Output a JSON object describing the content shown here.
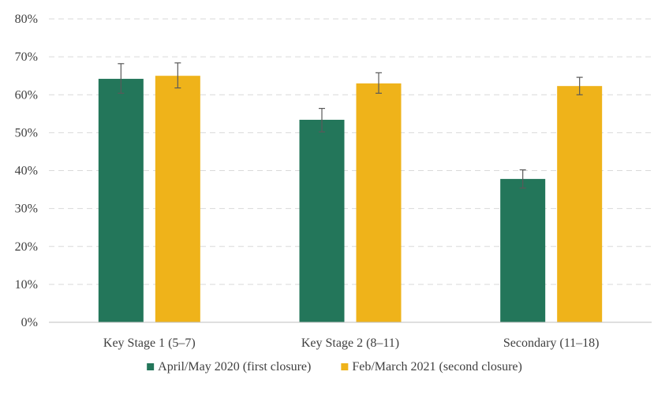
{
  "chart_data": {
    "type": "bar",
    "title": "",
    "xlabel": "",
    "ylabel": "",
    "ylim": [
      0,
      80
    ],
    "yticks": [
      0,
      10,
      20,
      30,
      40,
      50,
      60,
      70,
      80
    ],
    "ytick_labels": [
      "0%",
      "10%",
      "20%",
      "30%",
      "40%",
      "50%",
      "60%",
      "70%",
      "80%"
    ],
    "grid": true,
    "legend_position": "bottom-center",
    "categories": [
      "Key Stage 1 (5–7)",
      "Key Stage 2 (8–11)",
      "Secondary (11–18)"
    ],
    "series": [
      {
        "name": "April/May 2020 (first closure)",
        "color": "#23765a",
        "values": [
          64.2,
          53.4,
          37.8
        ],
        "error_low": [
          60.4,
          50.2,
          35.4
        ],
        "error_high": [
          68.2,
          56.4,
          40.2
        ]
      },
      {
        "name": "Feb/March 2021 (second closure)",
        "color": "#efb31a",
        "values": [
          65.0,
          63.0,
          62.3
        ],
        "error_low": [
          61.8,
          60.4,
          60.0
        ],
        "error_high": [
          68.4,
          65.8,
          64.6
        ]
      }
    ]
  }
}
